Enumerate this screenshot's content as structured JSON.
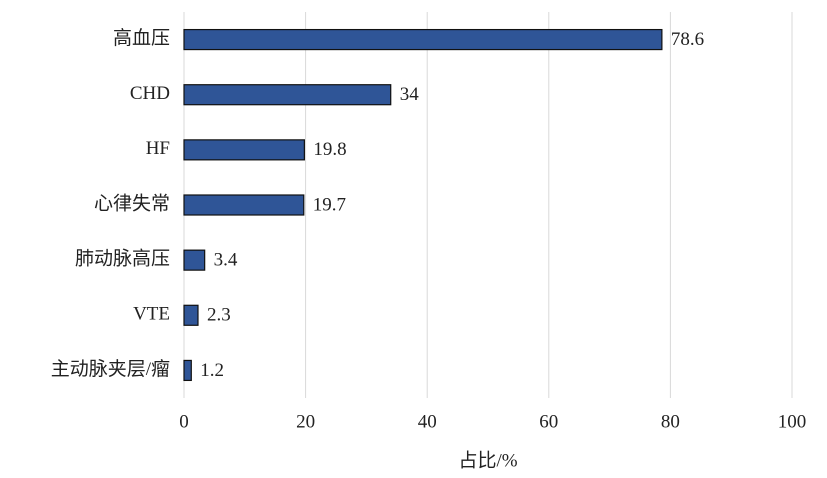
{
  "chart_data": {
    "type": "bar",
    "categories": [
      "高血压",
      "CHD",
      "HF",
      "心律失常",
      "肺动脉高压",
      "VTE",
      "主动脉夹层/瘤"
    ],
    "values": [
      78.6,
      34,
      19.8,
      19.7,
      3.4,
      2.3,
      1.2
    ],
    "color": "#2f5597",
    "xlim": [
      0,
      100
    ],
    "xticks": [
      0,
      20,
      40,
      60,
      80,
      100
    ],
    "x_label": "占比/%",
    "grid": true
  }
}
